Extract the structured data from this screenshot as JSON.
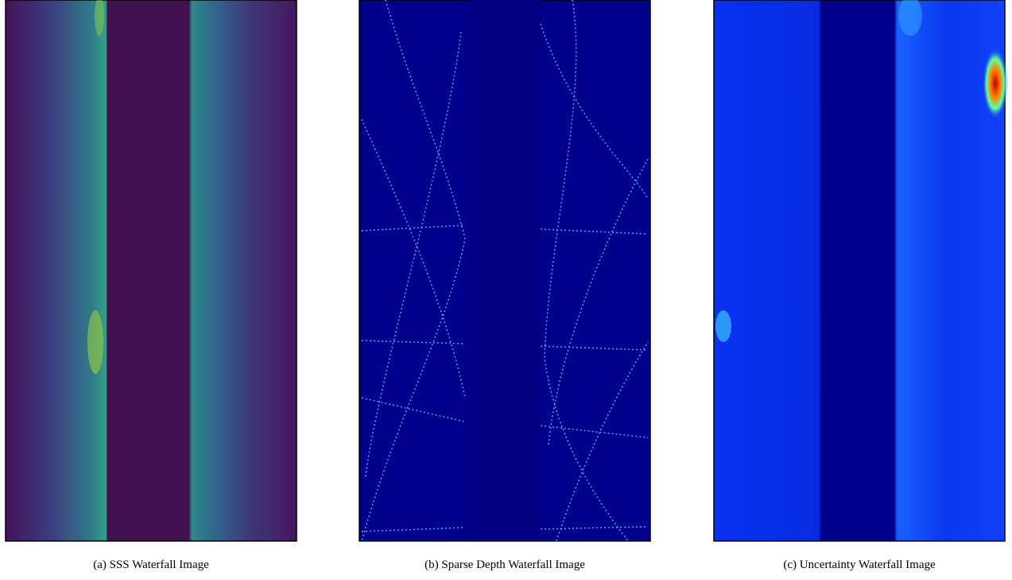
{
  "figure": {
    "panels": [
      {
        "caption": "(a) SSS Waterfall Image"
      },
      {
        "caption": "(b) Sparse Depth Waterfall Image"
      },
      {
        "caption": "(c) Uncertainty Waterfall Image"
      }
    ]
  }
}
